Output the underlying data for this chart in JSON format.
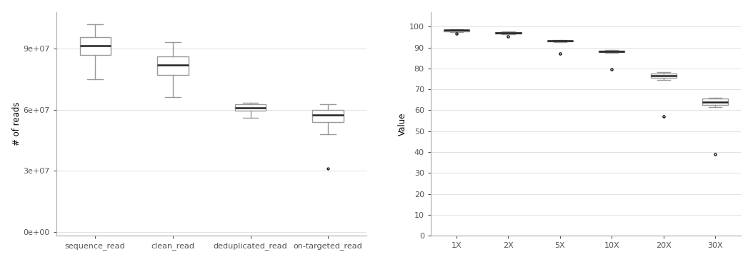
{
  "left_categories": [
    "sequence_read",
    "clean_read",
    "deduplicated_read",
    "on-targeted_read"
  ],
  "left_ylabel": "# of reads",
  "left_yticks": [
    0,
    30000000,
    60000000,
    90000000
  ],
  "left_ytick_labels": [
    "0e+00",
    "3e+07",
    "6e+07",
    "9e+07"
  ],
  "left_boxes": [
    {
      "q1": 87000000,
      "median": 91500000,
      "q3": 95500000,
      "whislo": 75000000,
      "whishi": 102000000,
      "fliers": []
    },
    {
      "q1": 77000000,
      "median": 82000000,
      "q3": 86000000,
      "whislo": 66000000,
      "whishi": 93000000,
      "fliers": []
    },
    {
      "q1": 59500000,
      "median": 61000000,
      "q3": 62500000,
      "whislo": 56000000,
      "whishi": 63500000,
      "fliers": []
    },
    {
      "q1": 54000000,
      "median": 57500000,
      "q3": 60000000,
      "whislo": 48000000,
      "whishi": 62500000,
      "fliers": [
        31000000
      ]
    }
  ],
  "right_categories": [
    "1X",
    "2X",
    "5X",
    "10X",
    "20X",
    "30X"
  ],
  "right_ylabel": "Value",
  "right_yticks": [
    0,
    10,
    20,
    30,
    40,
    50,
    60,
    70,
    80,
    90,
    100
  ],
  "right_boxes": [
    {
      "q1": 97.8,
      "median": 98.2,
      "q3": 98.5,
      "whislo": 97.5,
      "whishi": 98.7,
      "fliers": [
        96.6
      ]
    },
    {
      "q1": 96.7,
      "median": 97.1,
      "q3": 97.4,
      "whislo": 96.4,
      "whishi": 97.6,
      "fliers": [
        95.3
      ]
    },
    {
      "q1": 92.8,
      "median": 93.1,
      "q3": 93.4,
      "whislo": 92.6,
      "whishi": 93.6,
      "fliers": [
        87.2
      ]
    },
    {
      "q1": 87.8,
      "median": 88.1,
      "q3": 88.5,
      "whislo": 87.5,
      "whishi": 88.7,
      "fliers": [
        79.5
      ]
    },
    {
      "q1": 75.5,
      "median": 76.5,
      "q3": 77.5,
      "whislo": 74.5,
      "whishi": 78.2,
      "fliers": [
        57.0
      ]
    },
    {
      "q1": 62.5,
      "median": 64.0,
      "q3": 65.5,
      "whislo": 61.5,
      "whishi": 66.0,
      "fliers": [
        39.0
      ]
    }
  ],
  "box_color": "#999999",
  "median_color": "#222222",
  "flier_color": "#111111",
  "bg_color": "#ffffff",
  "grid_color": "#dddddd",
  "spine_color": "#aaaaaa"
}
